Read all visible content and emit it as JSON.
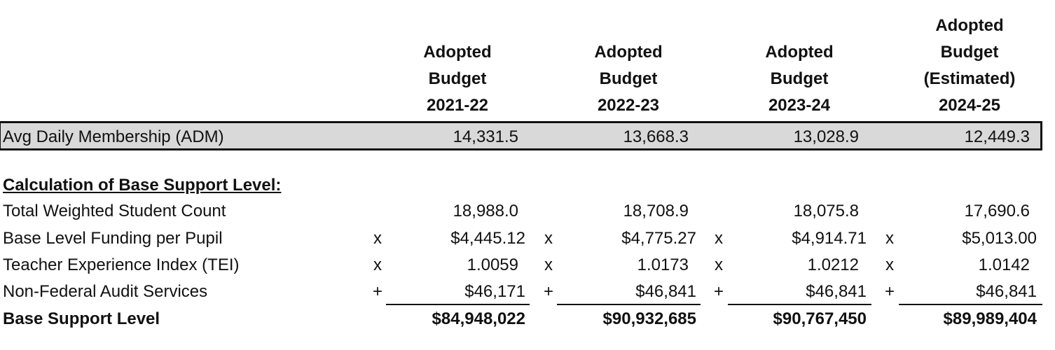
{
  "headers": [
    {
      "line1": "Adopted",
      "line2": "Budget",
      "line3": "",
      "year": "2021-22"
    },
    {
      "line1": "Adopted",
      "line2": "Budget",
      "line3": "",
      "year": "2022-23"
    },
    {
      "line1": "Adopted",
      "line2": "Budget",
      "line3": "",
      "year": "2023-24"
    },
    {
      "line1": "Adopted",
      "line2": "Budget",
      "line3": "(Estimated)",
      "year": "2024-25"
    }
  ],
  "adm": {
    "label": "Avg Daily Membership (ADM)",
    "values": [
      "14,331.5",
      "13,668.3",
      "13,028.9",
      "12,449.3"
    ]
  },
  "section": {
    "title": "Calculation of Base Support Level:"
  },
  "rows": [
    {
      "label": "Total Weighted Student Count",
      "op": "",
      "values": [
        "18,988.0",
        "18,708.9",
        "18,075.8",
        "17,690.6"
      ]
    },
    {
      "label": "Base Level Funding per Pupil",
      "op": "x",
      "values": [
        "$4,445.12",
        "$4,775.27",
        "$4,914.71",
        "$5,013.00"
      ]
    },
    {
      "label": "Teacher Experience Index (TEI)",
      "op": "x",
      "values": [
        "1.0059",
        "1.0173",
        "1.0212",
        "1.0142"
      ]
    },
    {
      "label": "Non-Federal Audit Services",
      "op": "+",
      "values": [
        "$46,171",
        "$46,841",
        "$46,841",
        "$46,841"
      ]
    }
  ],
  "total": {
    "label": "Base Support Level",
    "values": [
      "$84,948,022",
      "$90,932,685",
      "$90,767,450",
      "$89,989,404"
    ]
  }
}
